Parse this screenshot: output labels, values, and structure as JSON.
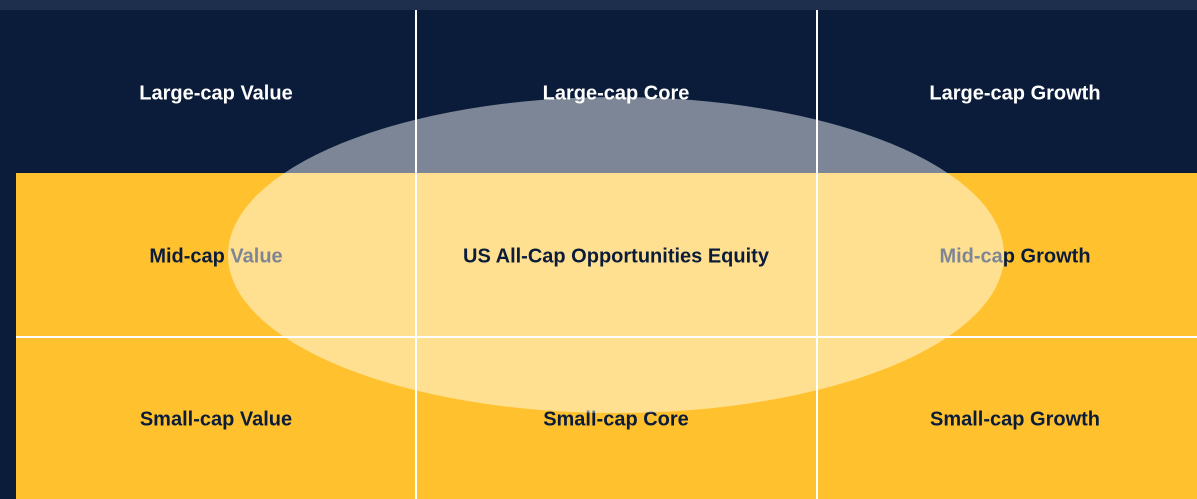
{
  "grid": {
    "rows": [
      {
        "cells": [
          "Large-cap Value",
          "Large-cap Core",
          "Large-cap Growth"
        ]
      },
      {
        "cells": [
          "Mid-cap Value",
          "Mid-cap Growth"
        ]
      },
      {
        "cells": [
          "Small-cap Value",
          "Small-cap Core",
          "Small-cap Growth"
        ]
      }
    ]
  },
  "overlay": {
    "label": "US All-Cap Opportunities Equity"
  }
}
